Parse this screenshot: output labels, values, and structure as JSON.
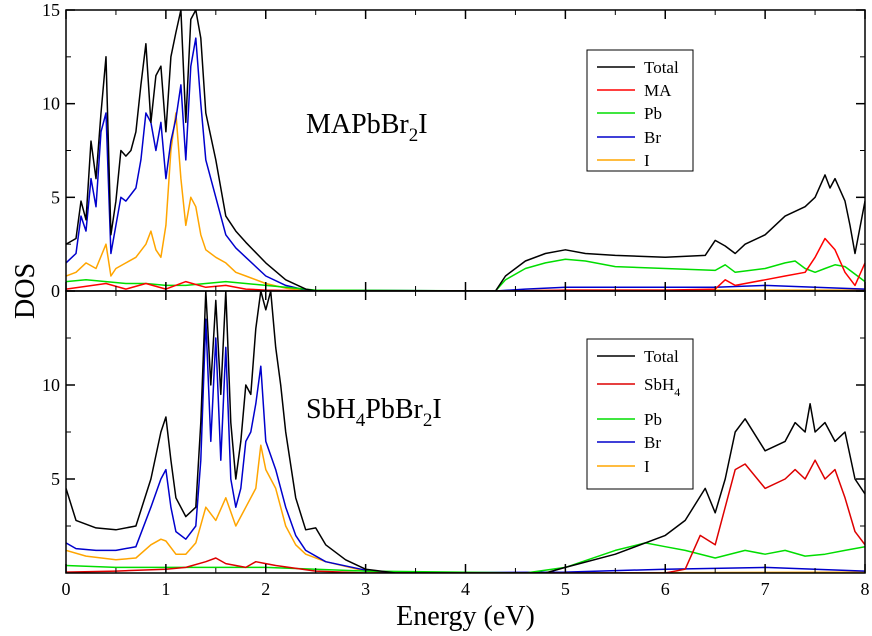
{
  "chart_data": [
    {
      "type": "line",
      "panel_label": {
        "main": "MAPbBr",
        "sub": "2",
        "tail": "I"
      },
      "xlim": [
        0,
        8
      ],
      "ylim": [
        0,
        15
      ],
      "yticks": [
        0,
        5,
        10,
        15
      ],
      "yticklabels": [
        "0",
        "5",
        "10",
        "15"
      ],
      "legend_position": "top-right",
      "series": [
        {
          "name": "Total",
          "color": "#000000",
          "x": [
            0,
            0.1,
            0.15,
            0.2,
            0.25,
            0.3,
            0.35,
            0.4,
            0.45,
            0.5,
            0.55,
            0.6,
            0.65,
            0.7,
            0.75,
            0.8,
            0.85,
            0.9,
            0.95,
            1.0,
            1.05,
            1.1,
            1.15,
            1.2,
            1.25,
            1.3,
            1.35,
            1.4,
            1.5,
            1.6,
            1.7,
            1.8,
            2.0,
            2.2,
            2.4,
            2.5,
            4.3,
            4.4,
            4.6,
            4.8,
            5.0,
            5.2,
            5.5,
            6.0,
            6.4,
            6.5,
            6.6,
            6.7,
            6.8,
            7.0,
            7.2,
            7.4,
            7.5,
            7.6,
            7.65,
            7.7,
            7.8,
            7.85,
            7.9,
            8.0
          ],
          "y": [
            2.5,
            2.8,
            4.8,
            3.8,
            8.0,
            6.0,
            9.5,
            12.5,
            3.0,
            4.8,
            7.5,
            7.2,
            7.5,
            8.5,
            11.0,
            13.2,
            9.0,
            11.5,
            12.0,
            8.5,
            12.5,
            13.8,
            15.0,
            9.0,
            14.5,
            15.0,
            13.5,
            9.5,
            7.0,
            4.0,
            3.2,
            2.6,
            1.5,
            0.6,
            0.1,
            0.0,
            0.0,
            0.8,
            1.6,
            2.0,
            2.2,
            2.0,
            1.9,
            1.8,
            1.9,
            2.7,
            2.4,
            2.0,
            2.5,
            3.0,
            4.0,
            4.5,
            5.0,
            6.2,
            5.5,
            6.0,
            4.8,
            3.5,
            2.0,
            4.8
          ]
        },
        {
          "name": "MA",
          "color": "#ff0000",
          "x": [
            0,
            0.4,
            0.6,
            0.8,
            1.0,
            1.2,
            1.4,
            1.6,
            1.8,
            2.0,
            2.5,
            4.5,
            5.0,
            5.5,
            6.0,
            6.5,
            6.6,
            6.7,
            7.0,
            7.2,
            7.4,
            7.5,
            7.6,
            7.7,
            7.8,
            7.9,
            8.0
          ],
          "y": [
            0.1,
            0.4,
            0.1,
            0.4,
            0.1,
            0.5,
            0.2,
            0.3,
            0.1,
            0.05,
            0.0,
            0.0,
            0.05,
            0.05,
            0.05,
            0.1,
            0.6,
            0.3,
            0.6,
            0.8,
            1.0,
            1.8,
            2.8,
            2.2,
            1.0,
            0.3,
            1.5
          ]
        },
        {
          "name": "Pb",
          "color": "#00dd00",
          "x": [
            0,
            0.2,
            0.4,
            0.6,
            0.8,
            1.0,
            1.2,
            1.4,
            1.6,
            1.8,
            2.0,
            2.2,
            2.5,
            4.3,
            4.4,
            4.6,
            4.8,
            5.0,
            5.2,
            5.5,
            6.0,
            6.5,
            6.6,
            6.7,
            7.0,
            7.2,
            7.3,
            7.4,
            7.5,
            7.6,
            7.7,
            7.8,
            8.0
          ],
          "y": [
            0.5,
            0.6,
            0.5,
            0.4,
            0.4,
            0.3,
            0.3,
            0.4,
            0.5,
            0.4,
            0.3,
            0.2,
            0.05,
            0.0,
            0.6,
            1.2,
            1.5,
            1.7,
            1.6,
            1.3,
            1.2,
            1.1,
            1.4,
            1.0,
            1.2,
            1.5,
            1.6,
            1.2,
            1.0,
            1.2,
            1.4,
            1.3,
            0.5
          ]
        },
        {
          "name": "Br",
          "color": "#0000cc",
          "x": [
            0,
            0.1,
            0.15,
            0.2,
            0.25,
            0.3,
            0.35,
            0.4,
            0.45,
            0.5,
            0.55,
            0.6,
            0.7,
            0.75,
            0.8,
            0.85,
            0.9,
            0.95,
            1.0,
            1.05,
            1.1,
            1.15,
            1.2,
            1.25,
            1.3,
            1.35,
            1.4,
            1.5,
            1.6,
            1.7,
            1.8,
            2.0,
            2.2,
            2.4,
            4.3,
            4.6,
            5.0,
            5.5,
            6.0,
            6.5,
            7.0,
            7.5,
            8.0
          ],
          "y": [
            1.5,
            2.0,
            4.0,
            3.2,
            6.0,
            4.5,
            8.5,
            9.5,
            2.0,
            3.5,
            5.0,
            4.8,
            5.5,
            7.0,
            9.5,
            9.0,
            7.5,
            9.0,
            6.0,
            8.0,
            9.2,
            11.0,
            7.0,
            12.0,
            13.5,
            10.0,
            7.0,
            5.0,
            3.0,
            2.3,
            1.8,
            0.8,
            0.3,
            0.05,
            0.0,
            0.1,
            0.2,
            0.2,
            0.2,
            0.2,
            0.3,
            0.2,
            0.1
          ]
        },
        {
          "name": "I",
          "color": "#ffa500",
          "x": [
            0,
            0.1,
            0.2,
            0.3,
            0.4,
            0.45,
            0.5,
            0.6,
            0.7,
            0.8,
            0.85,
            0.9,
            0.95,
            1.0,
            1.05,
            1.1,
            1.15,
            1.2,
            1.25,
            1.3,
            1.35,
            1.4,
            1.5,
            1.6,
            1.7,
            1.8,
            2.0,
            2.2,
            2.4,
            4.3,
            5.0,
            6.0,
            7.0,
            8.0
          ],
          "y": [
            0.8,
            1.0,
            1.5,
            1.2,
            2.5,
            0.8,
            1.2,
            1.5,
            1.8,
            2.5,
            3.2,
            2.2,
            1.8,
            3.5,
            7.5,
            9.5,
            6.0,
            3.5,
            5.0,
            4.5,
            3.0,
            2.2,
            1.8,
            1.5,
            1.0,
            0.8,
            0.4,
            0.15,
            0.02,
            0.0,
            0.05,
            0.05,
            0.05,
            0.05
          ]
        }
      ]
    },
    {
      "type": "line",
      "panel_label": {
        "main": "SbH",
        "sub": "4",
        "mid": "PbBr",
        "sub2": "2",
        "tail": "I"
      },
      "xlim": [
        0,
        8
      ],
      "ylim": [
        0,
        15
      ],
      "xlabel": "Energy (eV)",
      "ylabel": "DOS",
      "yticks": [
        5,
        10
      ],
      "yticklabels": [
        "5",
        "10"
      ],
      "xticks": [
        0,
        1,
        2,
        3,
        4,
        5,
        6,
        7,
        8
      ],
      "xticklabels": [
        "0",
        "1",
        "2",
        "3",
        "4",
        "5",
        "6",
        "7",
        "8"
      ],
      "legend_position": "top-right",
      "series": [
        {
          "name": "Total",
          "legend_main": "Total",
          "color": "#000000",
          "x": [
            0,
            0.1,
            0.3,
            0.5,
            0.7,
            0.85,
            0.95,
            1.0,
            1.05,
            1.1,
            1.2,
            1.3,
            1.35,
            1.4,
            1.45,
            1.5,
            1.55,
            1.6,
            1.65,
            1.7,
            1.75,
            1.8,
            1.85,
            1.9,
            1.95,
            2.0,
            2.05,
            2.1,
            2.15,
            2.2,
            2.3,
            2.4,
            2.5,
            2.6,
            2.8,
            3.0,
            3.3,
            4.8,
            5.0,
            5.5,
            6.0,
            6.2,
            6.4,
            6.5,
            6.6,
            6.7,
            6.8,
            7.0,
            7.2,
            7.3,
            7.4,
            7.45,
            7.5,
            7.6,
            7.7,
            7.8,
            7.9,
            8.0
          ],
          "y": [
            4.5,
            2.8,
            2.4,
            2.3,
            2.5,
            5.0,
            7.5,
            8.3,
            6.0,
            4.0,
            3.0,
            3.5,
            8.0,
            15.0,
            10.0,
            14.5,
            9.5,
            15.0,
            8.0,
            5.0,
            7.0,
            10.0,
            9.5,
            13.0,
            15.0,
            14.0,
            15.0,
            12.0,
            10.0,
            7.5,
            4.0,
            2.3,
            2.4,
            1.5,
            0.7,
            0.2,
            0.0,
            0.0,
            0.3,
            1.0,
            2.0,
            2.8,
            4.5,
            3.2,
            5.0,
            7.5,
            8.2,
            6.5,
            7.0,
            8.0,
            7.5,
            9.0,
            7.5,
            8.0,
            7.0,
            7.5,
            5.0,
            4.2
          ]
        },
        {
          "name": "SbH4",
          "legend_main": "SbH",
          "legend_sub": "4",
          "color": "#dd0000",
          "x": [
            0,
            0.5,
            1.0,
            1.2,
            1.4,
            1.5,
            1.6,
            1.8,
            1.9,
            2.0,
            2.1,
            2.5,
            3.0,
            5.0,
            6.0,
            6.2,
            6.35,
            6.5,
            6.6,
            6.7,
            6.8,
            7.0,
            7.2,
            7.3,
            7.4,
            7.5,
            7.6,
            7.7,
            7.8,
            7.9,
            8.0
          ],
          "y": [
            0.05,
            0.1,
            0.2,
            0.3,
            0.6,
            0.8,
            0.5,
            0.3,
            0.6,
            0.5,
            0.4,
            0.1,
            0.0,
            0.0,
            0.0,
            0.2,
            2.0,
            1.5,
            3.5,
            5.5,
            5.8,
            4.5,
            5.0,
            5.5,
            5.0,
            6.0,
            5.0,
            5.5,
            4.0,
            2.2,
            1.5
          ]
        },
        {
          "name": "Pb",
          "legend_main": "Pb",
          "color": "#00dd00",
          "x": [
            0,
            0.5,
            1.0,
            1.5,
            2.0,
            2.5,
            3.0,
            4.6,
            5.0,
            5.5,
            5.8,
            6.0,
            6.2,
            6.5,
            6.8,
            7.0,
            7.2,
            7.4,
            7.6,
            7.8,
            8.0
          ],
          "y": [
            0.4,
            0.3,
            0.3,
            0.3,
            0.3,
            0.2,
            0.1,
            0.0,
            0.3,
            1.2,
            1.6,
            1.4,
            1.2,
            0.8,
            1.2,
            1.0,
            1.2,
            0.9,
            1.0,
            1.2,
            1.4
          ]
        },
        {
          "name": "Br",
          "legend_main": "Br",
          "color": "#0000cc",
          "x": [
            0,
            0.1,
            0.3,
            0.5,
            0.7,
            0.85,
            0.95,
            1.0,
            1.05,
            1.1,
            1.2,
            1.3,
            1.35,
            1.4,
            1.45,
            1.5,
            1.55,
            1.6,
            1.65,
            1.7,
            1.75,
            1.8,
            1.85,
            1.9,
            1.95,
            2.0,
            2.1,
            2.2,
            2.3,
            2.4,
            2.6,
            3.0,
            3.3,
            5.0,
            6.0,
            7.0,
            8.0
          ],
          "y": [
            1.6,
            1.3,
            1.2,
            1.2,
            1.4,
            3.5,
            5.0,
            5.5,
            3.5,
            2.2,
            1.8,
            2.5,
            6.0,
            13.5,
            7.0,
            12.5,
            6.0,
            12.0,
            5.0,
            3.5,
            4.5,
            7.0,
            7.5,
            9.0,
            11.0,
            7.0,
            5.5,
            3.5,
            2.0,
            1.2,
            0.6,
            0.15,
            0.0,
            0.05,
            0.2,
            0.3,
            0.1
          ]
        },
        {
          "name": "I",
          "legend_main": "I",
          "color": "#ffa500",
          "x": [
            0,
            0.2,
            0.5,
            0.7,
            0.85,
            0.95,
            1.0,
            1.1,
            1.2,
            1.3,
            1.4,
            1.5,
            1.6,
            1.7,
            1.8,
            1.9,
            1.95,
            2.0,
            2.1,
            2.2,
            2.3,
            2.4,
            2.6,
            3.0,
            3.3,
            5.0,
            8.0
          ],
          "y": [
            1.2,
            0.9,
            0.7,
            0.8,
            1.5,
            1.8,
            1.7,
            1.0,
            1.0,
            1.6,
            3.5,
            2.8,
            4.0,
            2.5,
            3.5,
            4.5,
            6.8,
            5.5,
            4.5,
            2.5,
            1.5,
            1.0,
            0.6,
            0.1,
            0.0,
            0.0,
            0.05
          ]
        }
      ]
    }
  ]
}
